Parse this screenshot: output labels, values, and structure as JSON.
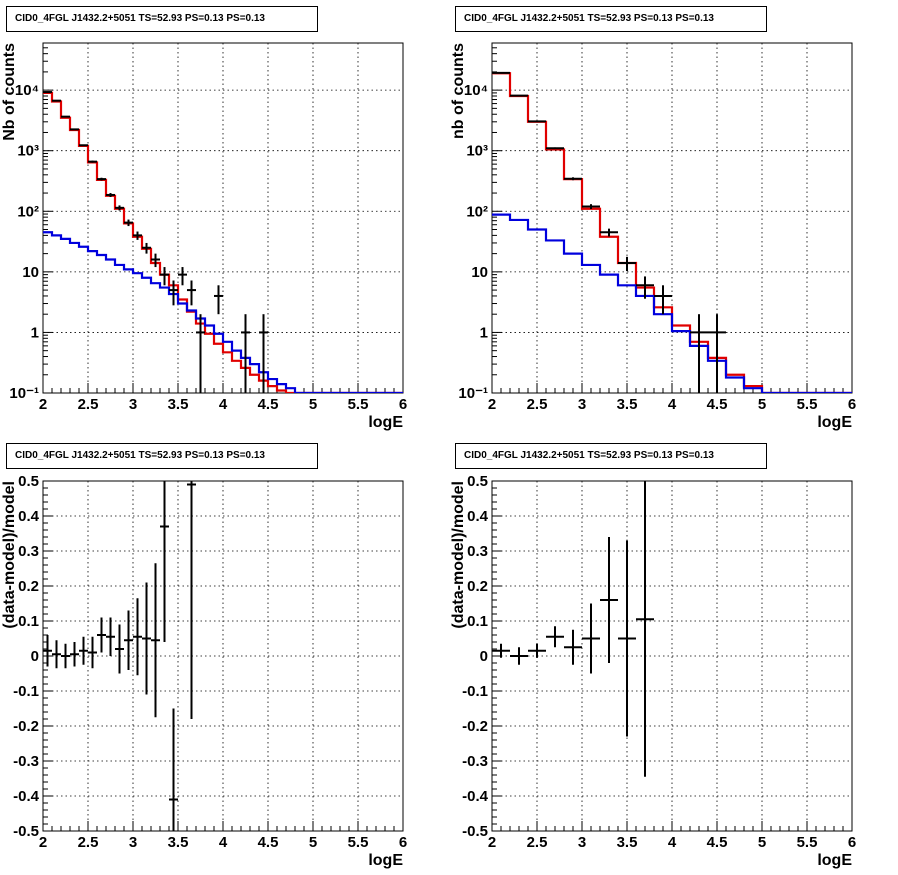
{
  "chart_data": [
    {
      "type": "histogram",
      "title": "CID0_4FGL J1432.2+5051 TS=52.93 PS=0.13 PS=0.13",
      "xlabel": "logE",
      "ylabel": "Nb of counts",
      "xlim": [
        2,
        6
      ],
      "ylim": [
        0.1,
        60000
      ],
      "yscale": "log",
      "grid": true,
      "xticks": [
        "2",
        "2.5",
        "3",
        "3.5",
        "4",
        "4.5",
        "5",
        "5.5",
        "6"
      ],
      "yticks": [
        {
          "value": 0.1,
          "label": "10⁻¹"
        },
        {
          "value": 1,
          "label": "1"
        },
        {
          "value": 10,
          "label": "10"
        },
        {
          "value": 100,
          "label": "10²"
        },
        {
          "value": 1000,
          "label": "10³"
        },
        {
          "value": 10000,
          "label": "10⁴"
        }
      ],
      "bin_edges": [
        2.0,
        2.1,
        2.2,
        2.3,
        2.4,
        2.5,
        2.6,
        2.7,
        2.8,
        2.9,
        3.0,
        3.1,
        3.2,
        3.3,
        3.4,
        3.5,
        3.6,
        3.7,
        3.8,
        3.9,
        4.0,
        4.1,
        4.2,
        4.3,
        4.4,
        4.5,
        4.6,
        4.7,
        4.8,
        4.9,
        5.0,
        5.1,
        5.2,
        5.3,
        5.4,
        5.5,
        5.6,
        5.7,
        5.8,
        5.9,
        6.0
      ],
      "series": [
        {
          "role": "total-model",
          "color": "#e00000",
          "values": [
            9000,
            6500,
            3500,
            2200,
            1200,
            640,
            330,
            180,
            110,
            63,
            38,
            24,
            14,
            9,
            6,
            3.5,
            2.2,
            1.4,
            0.95,
            0.65,
            0.47,
            0.34,
            0.26,
            0.2,
            0.16,
            0.13,
            0.11,
            0.1,
            0.1,
            0.1,
            0.1,
            0.1,
            0.1,
            0.1,
            0.1,
            0.1,
            0.1,
            0.1,
            0.1,
            0.1
          ]
        },
        {
          "role": "background-model",
          "color": "#0000dd",
          "values": [
            45,
            40,
            35,
            30,
            26,
            22,
            19,
            16,
            13,
            11,
            9.5,
            8,
            6.5,
            5.5,
            4.3,
            3,
            2.3,
            1.7,
            1.3,
            0.95,
            0.7,
            0.5,
            0.38,
            0.3,
            0.22,
            0.17,
            0.14,
            0.12,
            0.1,
            0.1,
            0.1,
            0.1,
            0.1,
            0.1,
            0.1,
            0.1,
            0.1,
            0.1,
            0.1,
            0.1
          ]
        }
      ],
      "data_points": [
        {
          "x": 2.05,
          "y": 9300,
          "err": 100
        },
        {
          "x": 2.15,
          "y": 6700,
          "err": 82
        },
        {
          "x": 2.25,
          "y": 3650,
          "err": 60
        },
        {
          "x": 2.35,
          "y": 2250,
          "err": 47
        },
        {
          "x": 2.45,
          "y": 1230,
          "err": 35
        },
        {
          "x": 2.55,
          "y": 660,
          "err": 26
        },
        {
          "x": 2.65,
          "y": 340,
          "err": 18
        },
        {
          "x": 2.75,
          "y": 186,
          "err": 14
        },
        {
          "x": 2.85,
          "y": 114,
          "err": 11
        },
        {
          "x": 2.95,
          "y": 65,
          "err": 8
        },
        {
          "x": 3.05,
          "y": 40,
          "err": 6.3
        },
        {
          "x": 3.15,
          "y": 25,
          "err": 5
        },
        {
          "x": 3.25,
          "y": 16,
          "err": 4
        },
        {
          "x": 3.35,
          "y": 9,
          "err": 3
        },
        {
          "x": 3.45,
          "y": 5,
          "err": 2.2
        },
        {
          "x": 3.55,
          "y": 9,
          "err": 3
        },
        {
          "x": 3.65,
          "y": 5,
          "err": 2.2
        },
        {
          "x": 3.75,
          "y": 1,
          "err": 1
        },
        {
          "x": 3.95,
          "y": 4,
          "err": 2
        },
        {
          "x": 4.25,
          "y": 1,
          "err": 1
        },
        {
          "x": 4.45,
          "y": 1,
          "err": 1
        }
      ]
    },
    {
      "type": "histogram",
      "title": "CID0_4FGL J1432.2+5051 TS=52.93 PS=0.13 PS=0.13",
      "xlabel": "logE",
      "ylabel": "nb of counts",
      "xlim": [
        2,
        6
      ],
      "ylim": [
        0.1,
        60000
      ],
      "yscale": "log",
      "grid": true,
      "xticks": [
        "2",
        "2.5",
        "3",
        "3.5",
        "4",
        "4.5",
        "5",
        "5.5",
        "6"
      ],
      "yticks": [
        {
          "value": 0.1,
          "label": "10⁻¹"
        },
        {
          "value": 1,
          "label": "1"
        },
        {
          "value": 10,
          "label": "10"
        },
        {
          "value": 100,
          "label": "10²"
        },
        {
          "value": 1000,
          "label": "10³"
        },
        {
          "value": 10000,
          "label": "10⁴"
        }
      ],
      "bin_edges": [
        2.0,
        2.2,
        2.4,
        2.6,
        2.8,
        3.0,
        3.2,
        3.4,
        3.6,
        3.8,
        4.0,
        4.2,
        4.4,
        4.6,
        4.8,
        5.0,
        5.2,
        5.4,
        5.6,
        5.8,
        6.0
      ],
      "series": [
        {
          "role": "total-model",
          "color": "#e00000",
          "values": [
            19000,
            8000,
            3000,
            1050,
            340,
            110,
            38,
            14,
            5.5,
            2.6,
            1.3,
            0.7,
            0.38,
            0.2,
            0.13,
            0.1,
            0.1,
            0.1,
            0.1,
            0.1
          ]
        },
        {
          "role": "background-model",
          "color": "#0000dd",
          "values": [
            88,
            72,
            50,
            33,
            20,
            13,
            9,
            6,
            4,
            2,
            1.05,
            0.6,
            0.34,
            0.18,
            0.12,
            0.1,
            0.1,
            0.1,
            0.1,
            0.1
          ]
        }
      ],
      "data_points": [
        {
          "x": 2.1,
          "y": 19300,
          "err": 139
        },
        {
          "x": 2.3,
          "y": 8100,
          "err": 90
        },
        {
          "x": 2.5,
          "y": 3050,
          "err": 55
        },
        {
          "x": 2.7,
          "y": 1100,
          "err": 33
        },
        {
          "x": 2.9,
          "y": 345,
          "err": 19
        },
        {
          "x": 3.1,
          "y": 120,
          "err": 11
        },
        {
          "x": 3.3,
          "y": 45,
          "err": 6.7
        },
        {
          "x": 3.5,
          "y": 14,
          "err": 3.7
        },
        {
          "x": 3.7,
          "y": 6,
          "err": 2.4
        },
        {
          "x": 3.9,
          "y": 4,
          "err": 2
        },
        {
          "x": 4.3,
          "y": 1,
          "err": 1
        },
        {
          "x": 4.5,
          "y": 1,
          "err": 1
        }
      ]
    },
    {
      "type": "scatter",
      "title": "CID0_4FGL J1432.2+5051 TS=52.93 PS=0.13 PS=0.13",
      "xlabel": "logE",
      "ylabel": "(data-model)/model",
      "xlim": [
        2,
        6
      ],
      "ylim": [
        -0.5,
        0.5
      ],
      "grid": true,
      "xticks": [
        "2",
        "2.5",
        "3",
        "3.5",
        "4",
        "4.5",
        "5",
        "5.5",
        "6"
      ],
      "yticks": [
        "-0.5",
        "-0.4",
        "-0.3",
        "-0.2",
        "-0.1",
        "0",
        "0.1",
        "0.2",
        "0.3",
        "0.4",
        "0.5"
      ],
      "bin_width": 0.1,
      "points": [
        {
          "x": 2.05,
          "y": 0.015,
          "err": 0.045
        },
        {
          "x": 2.15,
          "y": 0.005,
          "err": 0.04
        },
        {
          "x": 2.25,
          "y": 0.0,
          "err": 0.035
        },
        {
          "x": 2.35,
          "y": 0.005,
          "err": 0.035
        },
        {
          "x": 2.45,
          "y": 0.015,
          "err": 0.04
        },
        {
          "x": 2.55,
          "y": 0.01,
          "err": 0.045
        },
        {
          "x": 2.65,
          "y": 0.06,
          "err": 0.05
        },
        {
          "x": 2.75,
          "y": 0.055,
          "err": 0.055
        },
        {
          "x": 2.85,
          "y": 0.02,
          "err": 0.07
        },
        {
          "x": 2.95,
          "y": 0.045,
          "err": 0.085
        },
        {
          "x": 3.05,
          "y": 0.055,
          "err": 0.11
        },
        {
          "x": 3.15,
          "y": 0.05,
          "err": 0.16
        },
        {
          "x": 3.25,
          "y": 0.045,
          "err": 0.22
        },
        {
          "x": 3.35,
          "y": 0.37,
          "err": 0.33
        },
        {
          "x": 3.45,
          "y": -0.41,
          "err": 0.26
        },
        {
          "x": 3.65,
          "y": 0.49,
          "err": 0.67
        }
      ]
    },
    {
      "type": "scatter",
      "title": "CID0_4FGL J1432.2+5051 TS=52.93 PS=0.13 PS=0.13",
      "xlabel": "logE",
      "ylabel": "(data-model)/model",
      "xlim": [
        2,
        6
      ],
      "ylim": [
        -0.5,
        0.5
      ],
      "grid": true,
      "xticks": [
        "2",
        "2.5",
        "3",
        "3.5",
        "4",
        "4.5",
        "5",
        "5.5",
        "6"
      ],
      "yticks": [
        "-0.5",
        "-0.4",
        "-0.3",
        "-0.2",
        "-0.1",
        "0",
        "0.1",
        "0.2",
        "0.3",
        "0.4",
        "0.5"
      ],
      "bin_width": 0.2,
      "points": [
        {
          "x": 2.1,
          "y": 0.015,
          "err": 0.02
        },
        {
          "x": 2.3,
          "y": 0.0,
          "err": 0.025
        },
        {
          "x": 2.5,
          "y": 0.015,
          "err": 0.02
        },
        {
          "x": 2.7,
          "y": 0.055,
          "err": 0.03
        },
        {
          "x": 2.9,
          "y": 0.025,
          "err": 0.05
        },
        {
          "x": 3.1,
          "y": 0.05,
          "err": 0.1
        },
        {
          "x": 3.3,
          "y": 0.16,
          "err": 0.18
        },
        {
          "x": 3.5,
          "y": 0.05,
          "err": 0.28
        },
        {
          "x": 3.7,
          "y": 0.105,
          "err": 0.45
        }
      ]
    }
  ]
}
